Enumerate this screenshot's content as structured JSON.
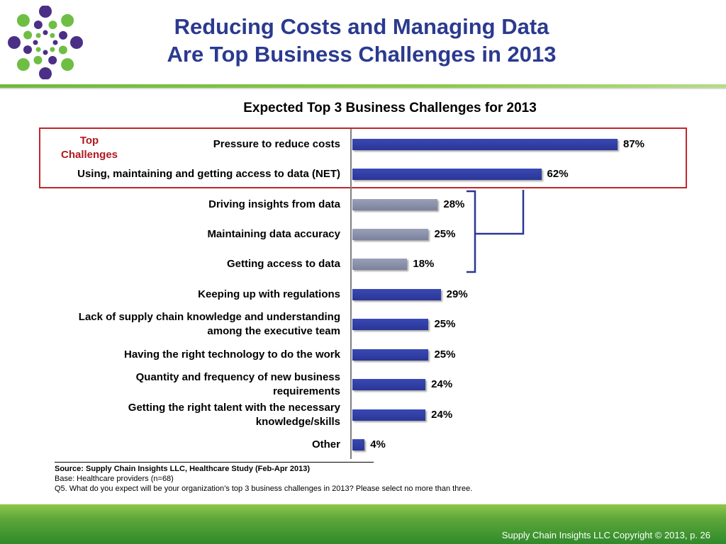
{
  "slide": {
    "title_line1": "Reducing Costs and Managing Data",
    "title_line2": "Are Top Business Challenges in 2013",
    "top_challenges_label_line1": "Top",
    "top_challenges_label_line2": "Challenges",
    "source": "Source:  Supply Chain Insights LLC, Healthcare Study (Feb-Apr 2013)",
    "base": "Base:  Healthcare providers (n=68)",
    "question": "Q5. What do you expect will be your organization’s top 3 business challenges in 2013? Please select no more than three.",
    "copyright": "Supply Chain Insights LLC Copyright © 2013, p. 26"
  },
  "colors": {
    "title": "#2b3a8f",
    "bar_primary": "#2f3c9e",
    "bar_sub": "#858ba5",
    "highlight_box": "#c0262b",
    "green": "#5fa83a"
  },
  "chart_data": {
    "type": "bar",
    "orientation": "horizontal",
    "title": "Expected Top 3 Business Challenges for 2013",
    "xlim": [
      0,
      100
    ],
    "unit": "%",
    "grid": false,
    "categories": [
      "Pressure to reduce costs",
      "Using, maintaining and getting access to data (NET)",
      "Driving insights from data",
      "Maintaining data accuracy",
      "Getting access to data",
      "Keeping up with regulations",
      "Lack of supply chain knowledge and understanding among the executive team",
      "Having the right technology to do the work",
      "Quantity and frequency of new business requirements",
      "Getting the right talent with the necessary knowledge/skills",
      "Other"
    ],
    "values": [
      87,
      62,
      28,
      25,
      18,
      29,
      25,
      25,
      24,
      24,
      4
    ],
    "value_labels": [
      "87%",
      "62%",
      "28%",
      "25%",
      "18%",
      "29%",
      "25%",
      "25%",
      "24%",
      "24%",
      "4%"
    ],
    "label_lines": [
      [
        "Pressure to reduce costs"
      ],
      [
        "Using, maintaining and getting access to data (NET)"
      ],
      [
        "Driving insights from data"
      ],
      [
        "Maintaining data accuracy"
      ],
      [
        "Getting access to data"
      ],
      [
        "Keeping up with regulations"
      ],
      [
        "Lack of supply chain knowledge and understanding",
        "among the executive team"
      ],
      [
        "Having the right technology to do the work"
      ],
      [
        "Quantity and frequency of new business",
        "requirements"
      ],
      [
        "Getting the right talent with the necessary",
        "knowledge/skills"
      ],
      [
        "Other"
      ]
    ],
    "sub_items": [
      2,
      3,
      4
    ],
    "highlighted": [
      0,
      1
    ]
  }
}
